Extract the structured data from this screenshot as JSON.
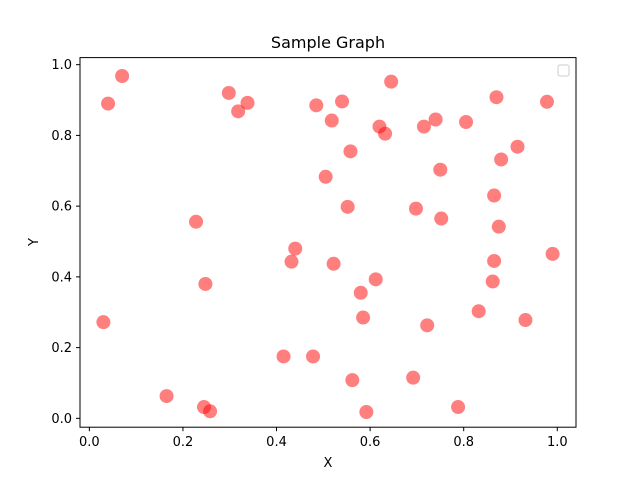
{
  "chart_data": {
    "type": "scatter",
    "title": "Sample Graph",
    "xlabel": "X",
    "ylabel": "Y",
    "xlim": [
      -0.02,
      1.04
    ],
    "ylim": [
      -0.025,
      1.02
    ],
    "xticks": [
      "0.0",
      "0.2",
      "0.4",
      "0.6",
      "0.8",
      "1.0"
    ],
    "xtick_values": [
      0.0,
      0.2,
      0.4,
      0.6,
      0.8,
      1.0
    ],
    "yticks": [
      "0.0",
      "0.2",
      "0.4",
      "0.6",
      "0.8",
      "1.0"
    ],
    "ytick_values": [
      0.0,
      0.2,
      0.4,
      0.6,
      0.8,
      1.0
    ],
    "grid": false,
    "legend": "top-right",
    "marker_color": "#ff0000",
    "marker_alpha": 0.5,
    "series": [
      {
        "name": "",
        "x": [
          0.03,
          0.04,
          0.07,
          0.165,
          0.228,
          0.245,
          0.248,
          0.258,
          0.298,
          0.318,
          0.338,
          0.415,
          0.432,
          0.44,
          0.478,
          0.485,
          0.505,
          0.518,
          0.522,
          0.54,
          0.552,
          0.558,
          0.562,
          0.58,
          0.585,
          0.592,
          0.612,
          0.62,
          0.632,
          0.645,
          0.692,
          0.698,
          0.715,
          0.722,
          0.74,
          0.75,
          0.752,
          0.788,
          0.805,
          0.832,
          0.862,
          0.865,
          0.865,
          0.87,
          0.875,
          0.88,
          0.915,
          0.932,
          0.978,
          0.99
        ],
        "y": [
          0.272,
          0.89,
          0.968,
          0.063,
          0.556,
          0.032,
          0.38,
          0.02,
          0.92,
          0.868,
          0.892,
          0.175,
          0.443,
          0.48,
          0.175,
          0.885,
          0.683,
          0.842,
          0.437,
          0.896,
          0.598,
          0.755,
          0.108,
          0.355,
          0.285,
          0.018,
          0.393,
          0.825,
          0.805,
          0.952,
          0.115,
          0.593,
          0.825,
          0.263,
          0.845,
          0.703,
          0.565,
          0.032,
          0.838,
          0.303,
          0.387,
          0.445,
          0.63,
          0.908,
          0.542,
          0.732,
          0.768,
          0.278,
          0.895,
          0.465
        ]
      }
    ]
  }
}
